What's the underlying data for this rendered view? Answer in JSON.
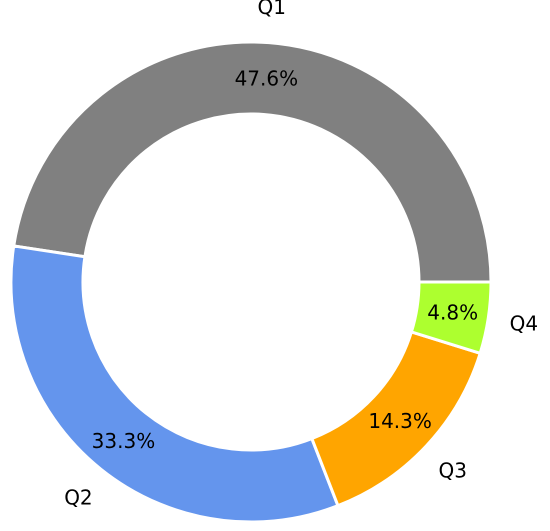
{
  "chart_data": {
    "type": "pie",
    "donut": true,
    "categories": [
      "Q1",
      "Q2",
      "Q3",
      "Q4"
    ],
    "values": [
      47.6,
      33.3,
      14.3,
      4.8
    ],
    "percent_labels": [
      "47.6%",
      "33.3%",
      "14.3%",
      "4.8%"
    ],
    "colors": [
      "#808080",
      "#6495ED",
      "#FFA500",
      "#ADFF2F"
    ],
    "start_angle_deg": 0,
    "direction": "counterclockwise",
    "legend": "none"
  }
}
